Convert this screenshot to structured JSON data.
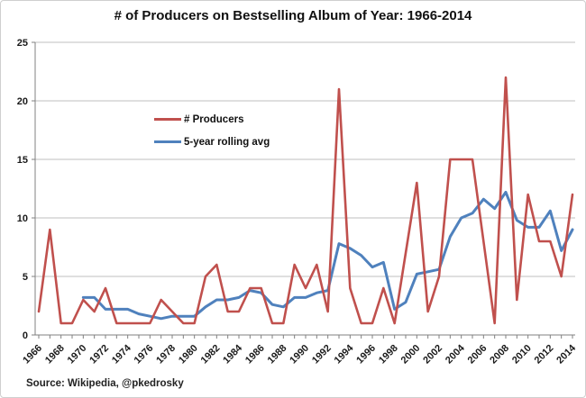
{
  "title": "# of Producers on Bestselling Album of Year: 1966-2014",
  "source": "Source: Wikipedia, @pkedrosky",
  "legend": {
    "producers": "# Producers",
    "rolling": "5-year rolling avg"
  },
  "colors": {
    "producers": "#C0504D",
    "rolling": "#4F81BD",
    "grid": "#BFBFBF",
    "axis": "#808080",
    "text": "#1A1A1A"
  },
  "chart_data": {
    "type": "line",
    "title": "# of Producers on Bestselling Album of Year: 1966-2014",
    "x": [
      1966,
      1967,
      1968,
      1969,
      1970,
      1971,
      1972,
      1973,
      1974,
      1975,
      1976,
      1977,
      1978,
      1979,
      1980,
      1981,
      1982,
      1983,
      1984,
      1985,
      1986,
      1987,
      1988,
      1989,
      1990,
      1991,
      1992,
      1993,
      1994,
      1995,
      1996,
      1997,
      1998,
      1999,
      2000,
      2001,
      2002,
      2003,
      2004,
      2005,
      2006,
      2007,
      2008,
      2009,
      2010,
      2011,
      2012,
      2013,
      2014
    ],
    "series": [
      {
        "name": "# Producers",
        "color_key": "producers",
        "stroke_width": 2.6,
        "values": [
          2,
          9,
          1,
          1,
          3,
          2,
          4,
          1,
          1,
          1,
          1,
          3,
          2,
          1,
          1,
          5,
          6,
          2,
          2,
          4,
          4,
          1,
          1,
          6,
          4,
          6,
          2,
          21,
          4,
          1,
          1,
          4,
          1,
          7,
          13,
          2,
          5,
          15,
          15,
          15,
          8,
          1,
          22,
          3,
          12,
          8,
          8,
          5,
          12
        ]
      },
      {
        "name": "5-year rolling avg",
        "color_key": "rolling",
        "stroke_width": 3,
        "values": [
          null,
          null,
          null,
          null,
          3.2,
          3.2,
          2.2,
          2.2,
          2.2,
          1.8,
          1.6,
          1.4,
          1.6,
          1.6,
          1.6,
          2.4,
          3.0,
          3.0,
          3.2,
          3.8,
          3.6,
          2.6,
          2.4,
          3.2,
          3.2,
          3.6,
          3.8,
          7.8,
          7.4,
          6.8,
          5.8,
          6.2,
          2.2,
          2.8,
          5.2,
          5.4,
          5.6,
          8.4,
          10.0,
          10.4,
          11.6,
          10.8,
          12.2,
          9.8,
          9.2,
          9.2,
          10.6,
          7.2,
          9.0
        ]
      }
    ],
    "ylim": [
      0,
      25
    ],
    "yticks": [
      0,
      5,
      10,
      15,
      20,
      25
    ],
    "xtick_label_step": 2,
    "xtick_marks_every_year": true,
    "xtick_label_rotation": -45,
    "grid": "horizontal",
    "legend_position": "inside-upper-left"
  }
}
